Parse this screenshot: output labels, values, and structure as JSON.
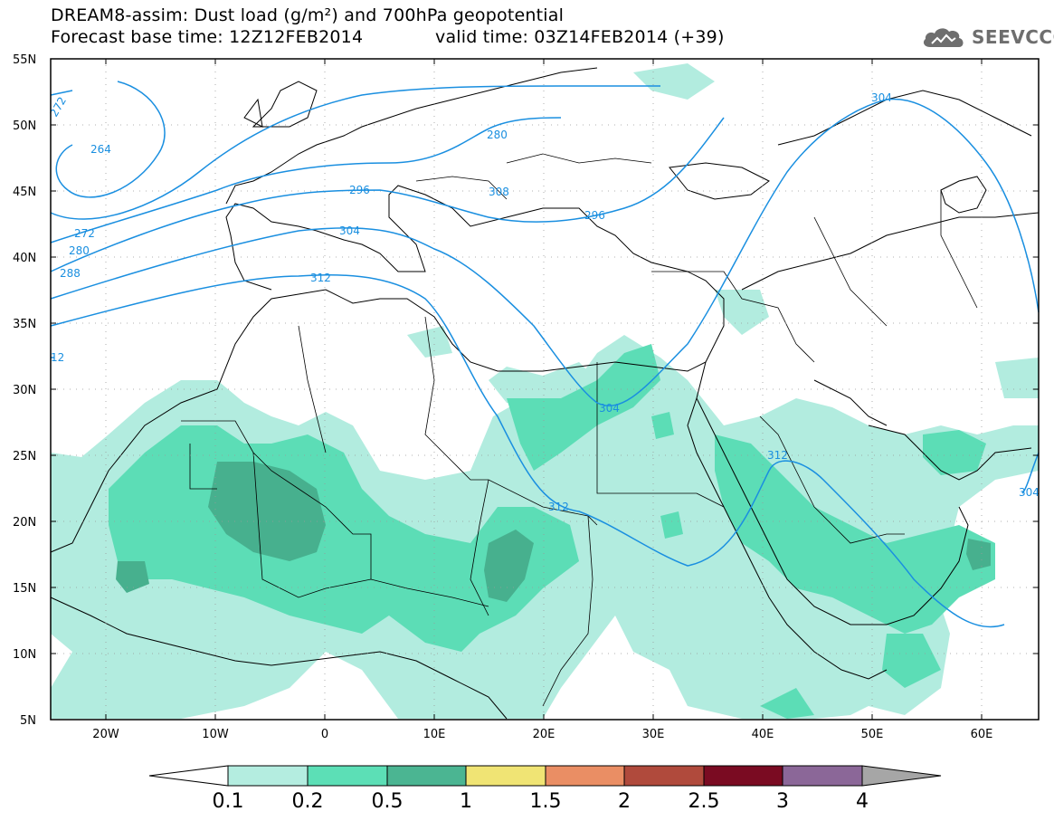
{
  "header": {
    "title": "DREAM8-assim: Dust load (g/m²) and 700hPa geopotential",
    "base_time": "Forecast base time: 12Z12FEB2014",
    "valid_time": "valid time: 03Z14FEB2014 (+39)"
  },
  "logo": {
    "text": "SEEVCCC",
    "icon": "cloud-logo-icon"
  },
  "map": {
    "lat_labels": [
      "55N",
      "50N",
      "45N",
      "40N",
      "35N",
      "30N",
      "25N",
      "20N",
      "15N",
      "10N",
      "5N"
    ],
    "lon_labels": [
      "20W",
      "10W",
      "0",
      "10E",
      "20E",
      "30E",
      "40E",
      "50E",
      "60E"
    ],
    "lat_range": [
      5,
      55
    ],
    "lon_range": [
      -25,
      65
    ],
    "contour_labels": [
      "272",
      "264",
      "272",
      "280",
      "288",
      "296",
      "304",
      "312",
      "12",
      "280",
      "296",
      "308",
      "304",
      "304",
      "312",
      "304"
    ],
    "colors": {
      "contour": "#1a8fe0",
      "dust_0.1": "#b2ecdf",
      "dust_0.2": "#5cddb6",
      "dust_0.5": "#47b08e",
      "coast": "#000000"
    }
  },
  "colorbar": {
    "labels": [
      "0.1",
      "0.2",
      "0.5",
      "1",
      "1.5",
      "2",
      "2.5",
      "3",
      "4"
    ],
    "colors": [
      "#b4ede0",
      "#5cdfb6",
      "#4bb592",
      "#f0e474",
      "#ea8e64",
      "#b04a3c",
      "#7a0b22",
      "#8b6798"
    ]
  }
}
